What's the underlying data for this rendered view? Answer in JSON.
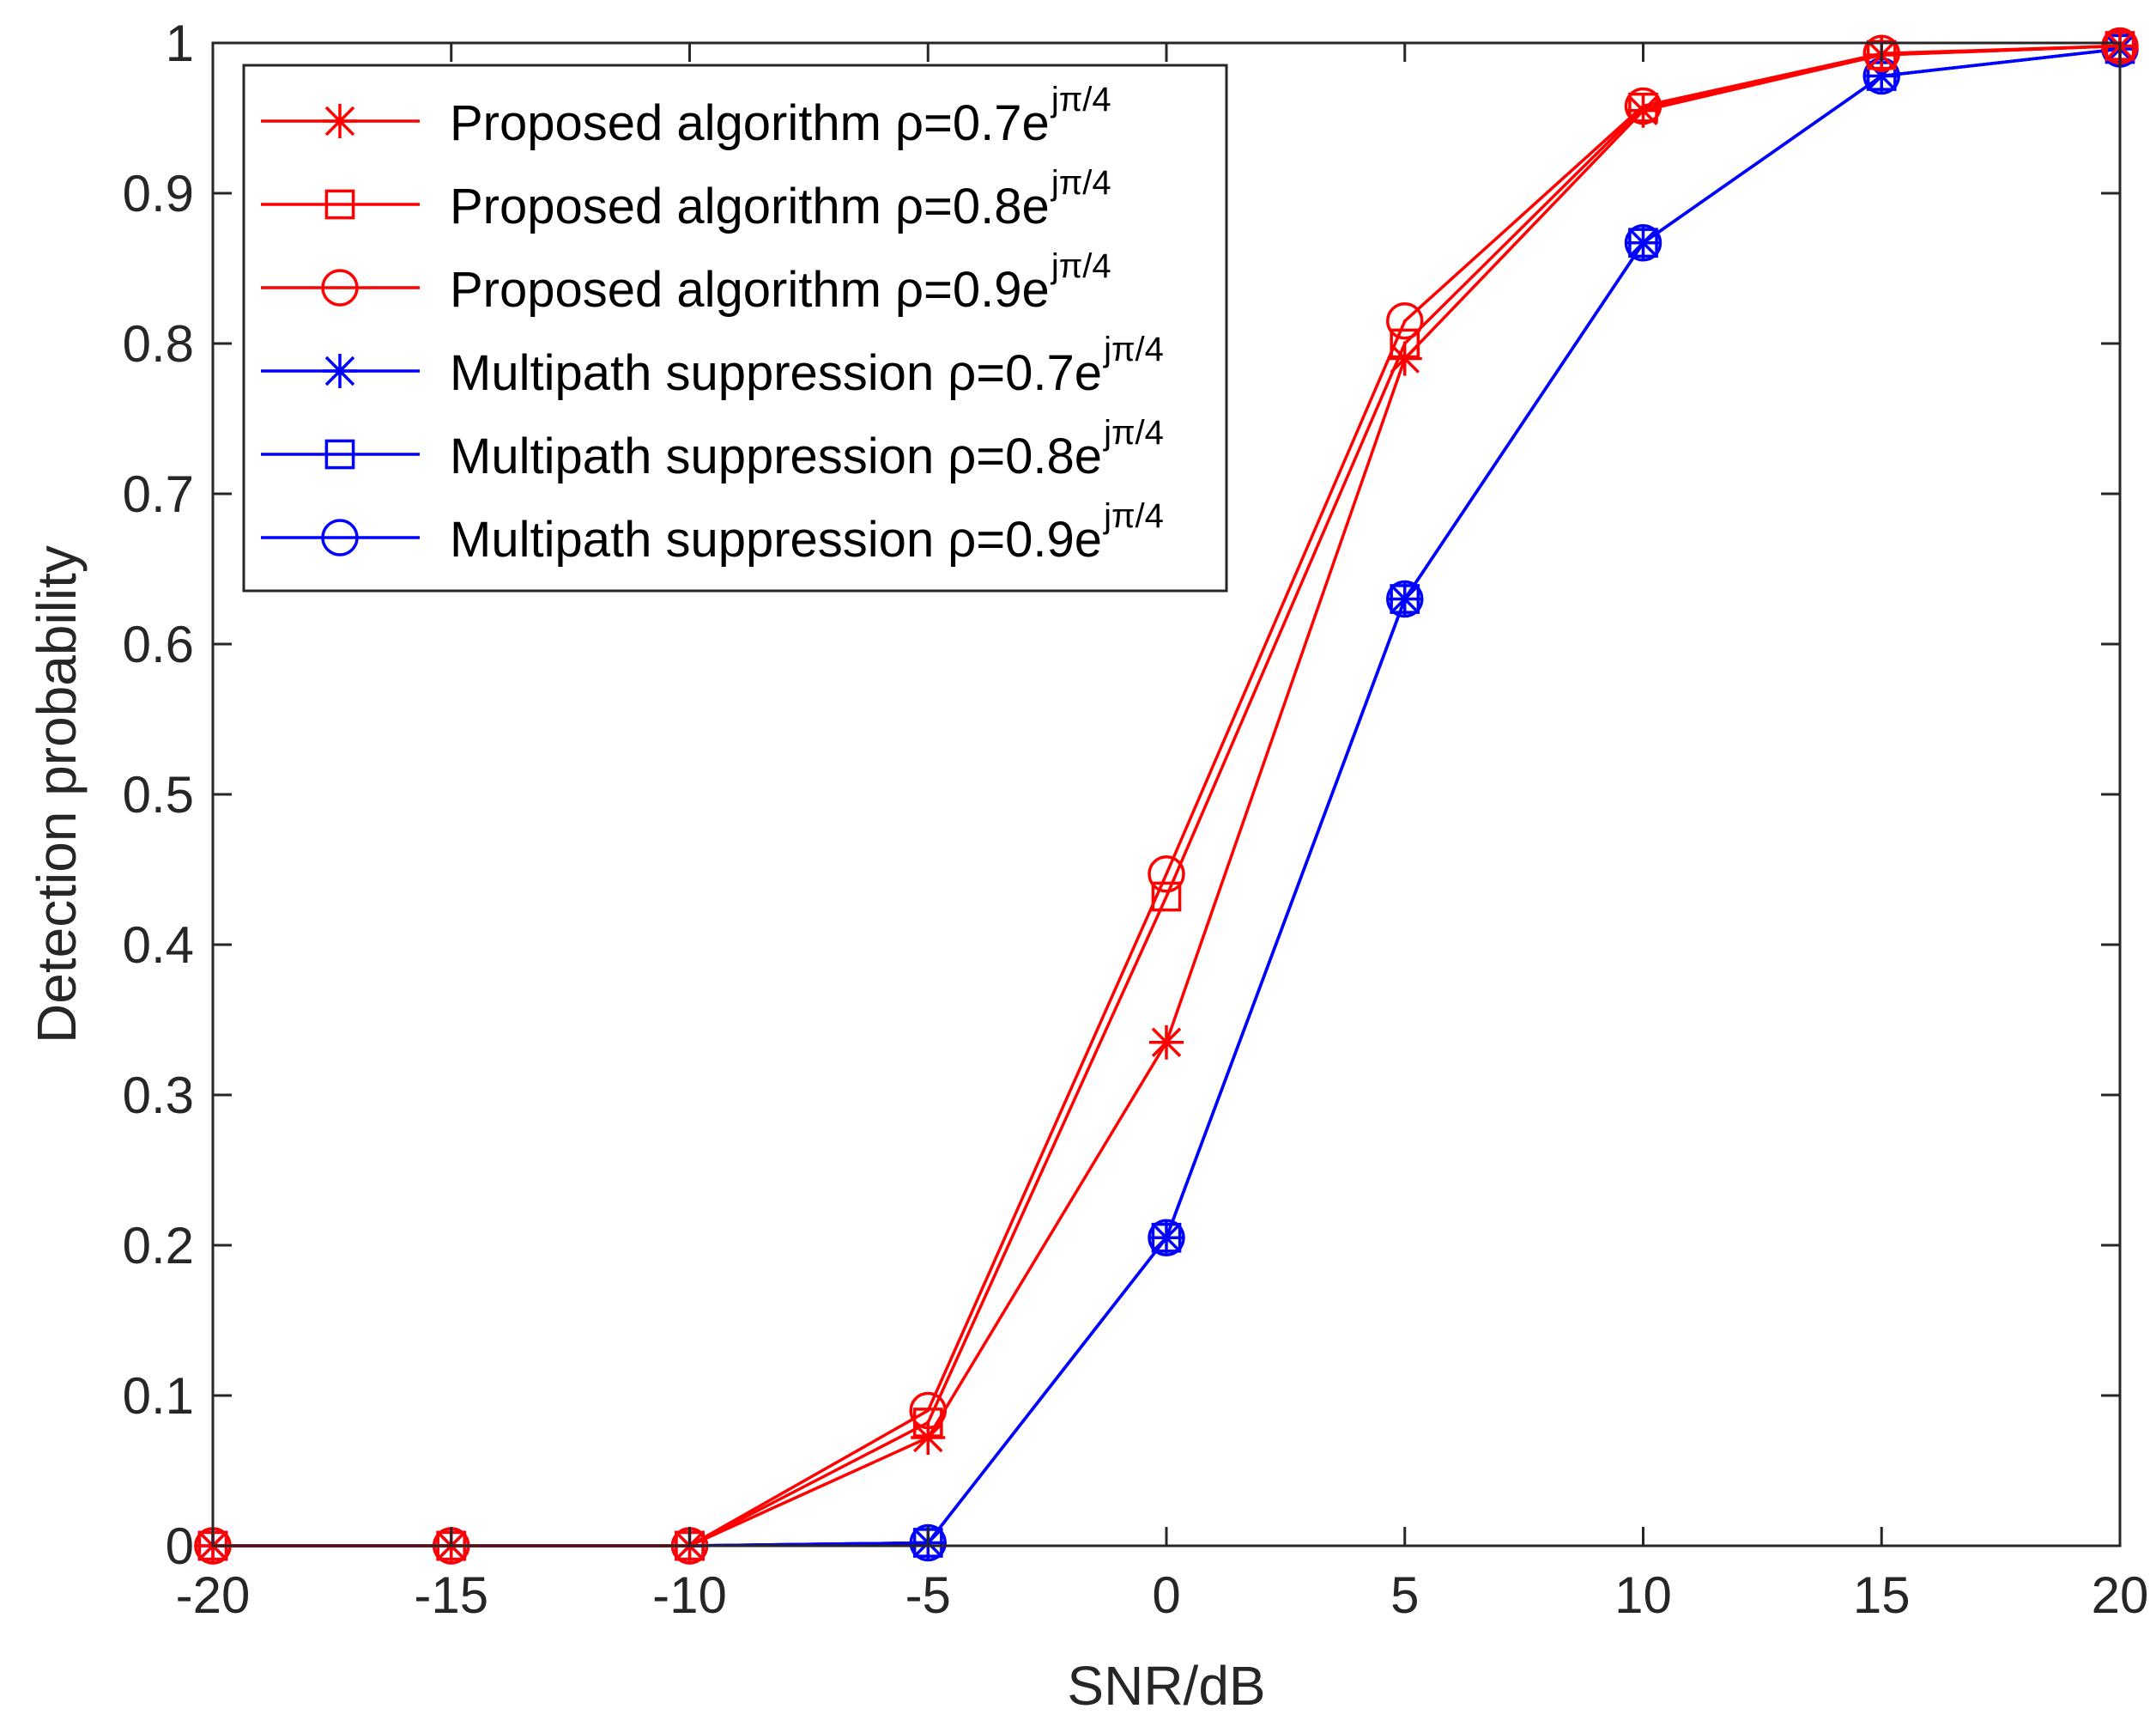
{
  "chart_data": {
    "type": "line",
    "title": "",
    "xlabel": "SNR/dB",
    "ylabel": "Detection probability",
    "xlim": [
      -20,
      20
    ],
    "ylim": [
      0,
      1
    ],
    "grid": false,
    "legend_position": "top-left",
    "x": [
      -20,
      -15,
      -10,
      -5,
      0,
      5,
      10,
      15,
      20
    ],
    "xticks": [
      "-20",
      "-15",
      "-10",
      "-5",
      "0",
      "5",
      "10",
      "15",
      "20"
    ],
    "yticks": [
      "0",
      "0.1",
      "0.2",
      "0.3",
      "0.4",
      "0.5",
      "0.6",
      "0.7",
      "0.8",
      "0.9",
      "1"
    ],
    "colors": {
      "red": "#ff0000",
      "blue": "#0000ff"
    },
    "series": [
      {
        "name": "Proposed algorithm ρ=0.7e",
        "sup": "jπ/4",
        "color": "#ff0000",
        "marker": "asterisk",
        "values": [
          0,
          0,
          0,
          0.072,
          0.335,
          0.79,
          0.955,
          0.992,
          0.998
        ]
      },
      {
        "name": "Proposed algorithm ρ=0.8e",
        "sup": "jπ/4",
        "color": "#ff0000",
        "marker": "square",
        "values": [
          0,
          0,
          0,
          0.082,
          0.432,
          0.8,
          0.957,
          0.992,
          0.998
        ]
      },
      {
        "name": "Proposed algorithm ρ=0.9e",
        "sup": "jπ/4",
        "color": "#ff0000",
        "marker": "circle",
        "values": [
          0,
          0,
          0,
          0.09,
          0.447,
          0.815,
          0.958,
          0.993,
          0.998
        ]
      },
      {
        "name": "Multipath suppression ρ=0.7e",
        "sup": "jπ/4",
        "color": "#0000ff",
        "marker": "asterisk",
        "values": [
          0,
          0,
          0,
          0.002,
          0.205,
          0.63,
          0.867,
          0.978,
          0.996
        ]
      },
      {
        "name": "Multipath suppression ρ=0.8e",
        "sup": "jπ/4",
        "color": "#0000ff",
        "marker": "square",
        "values": [
          0,
          0,
          0,
          0.002,
          0.205,
          0.63,
          0.867,
          0.978,
          0.996
        ]
      },
      {
        "name": "Multipath suppression ρ=0.9e",
        "sup": "jπ/4",
        "color": "#0000ff",
        "marker": "circle",
        "values": [
          0,
          0,
          0,
          0.002,
          0.205,
          0.63,
          0.867,
          0.978,
          0.996
        ]
      }
    ]
  }
}
